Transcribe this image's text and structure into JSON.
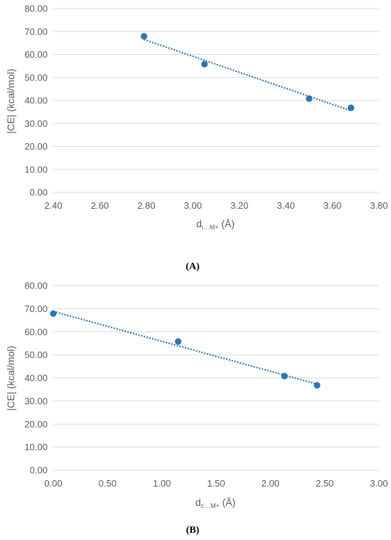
{
  "charts": [
    {
      "type": "scatter",
      "panel_label": "(A)",
      "ylabel": "|CE| (kcal/mol)",
      "xlabel": {
        "base": "d",
        "sub": "i…M+",
        "unit": " (Å)"
      },
      "xlim": [
        2.4,
        3.8
      ],
      "xticks": [
        "2.40",
        "2.60",
        "2.80",
        "3.00",
        "3.20",
        "3.40",
        "3.60",
        "3.80"
      ],
      "ylim": [
        0,
        80
      ],
      "yticks": [
        "0.00",
        "10.00",
        "20.00",
        "30.00",
        "40.00",
        "50.00",
        "60.00",
        "70.00",
        "80.00"
      ],
      "grid": "horizontal",
      "points": [
        {
          "x": 2.79,
          "y": 67.9
        },
        {
          "x": 3.05,
          "y": 55.8
        },
        {
          "x": 3.5,
          "y": 40.8
        },
        {
          "x": 3.68,
          "y": 36.8
        }
      ],
      "trendline": {
        "type": "linear",
        "style": "dotted"
      },
      "color": "#2e75b6"
    },
    {
      "type": "scatter",
      "panel_label": "(B)",
      "ylabel": "|CE| (kcal/mol)",
      "xlabel": {
        "base": "d",
        "sub": "c…M+",
        "unit": " (Å)"
      },
      "xlim": [
        0.0,
        3.0
      ],
      "xticks": [
        "0.00",
        "0.50",
        "1.00",
        "1.50",
        "2.00",
        "2.50",
        "3.00"
      ],
      "ylim": [
        0,
        80
      ],
      "yticks": [
        "0.00",
        "10.00",
        "20.00",
        "30.00",
        "40.00",
        "50.00",
        "60.00",
        "70.00",
        "80.00"
      ],
      "grid": "horizontal",
      "points": [
        {
          "x": 0.0,
          "y": 67.9
        },
        {
          "x": 1.15,
          "y": 55.8
        },
        {
          "x": 2.13,
          "y": 40.8
        },
        {
          "x": 2.43,
          "y": 36.8
        }
      ],
      "trendline": {
        "type": "linear",
        "style": "dotted"
      },
      "color": "#2e75b6"
    }
  ]
}
